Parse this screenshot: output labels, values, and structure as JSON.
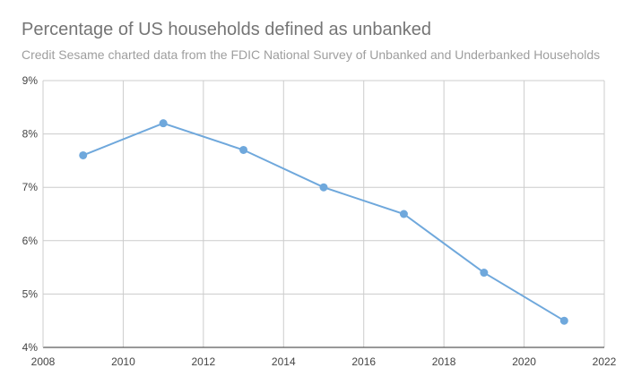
{
  "chart_data": {
    "type": "line",
    "title": "Percentage of US households defined as unbanked",
    "subtitle": "Credit Sesame charted data from the FDIC National Survey of Unbanked and Underbanked Households",
    "xlabel": "",
    "ylabel": "",
    "x": [
      2009,
      2011,
      2013,
      2015,
      2017,
      2019,
      2021
    ],
    "series": [
      {
        "values": [
          7.6,
          8.2,
          7.7,
          7.0,
          6.5,
          5.4,
          4.5
        ],
        "color": "#6fa8dc"
      }
    ],
    "xlim": [
      2008,
      2022
    ],
    "ylim": [
      4,
      9
    ],
    "x_ticks": [
      2008,
      2010,
      2012,
      2014,
      2016,
      2018,
      2020,
      2022
    ],
    "y_ticks": [
      4,
      5,
      6,
      7,
      8,
      9
    ],
    "y_tick_labels": [
      "4%",
      "5%",
      "6%",
      "7%",
      "8%",
      "9%"
    ],
    "grid": true,
    "legend": "none",
    "colors": {
      "grid": "#cccccc",
      "axis": "#333333",
      "title": "#757575",
      "subtitle": "#9e9e9e"
    }
  }
}
